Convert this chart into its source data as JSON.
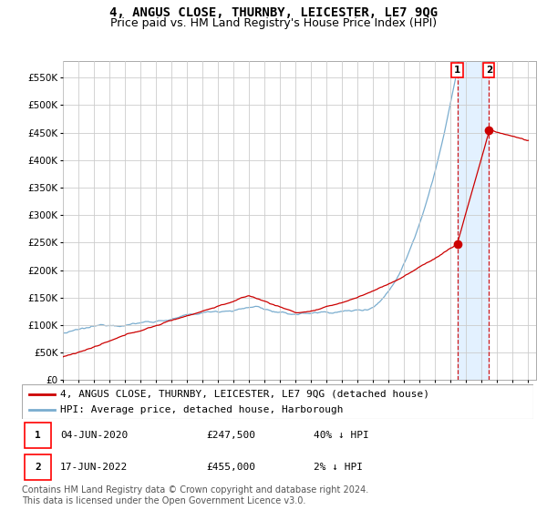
{
  "title": "4, ANGUS CLOSE, THURNBY, LEICESTER, LE7 9QG",
  "subtitle": "Price paid vs. HM Land Registry's House Price Index (HPI)",
  "ylim": [
    0,
    580000
  ],
  "yticks": [
    0,
    50000,
    100000,
    150000,
    200000,
    250000,
    300000,
    350000,
    400000,
    450000,
    500000,
    550000
  ],
  "xlim_start": 1995.0,
  "xlim_end": 2025.5,
  "hpi_color": "#7aadcf",
  "price_color": "#cc0000",
  "shade_color": "#ddeeff",
  "sale1_date": 2020.42,
  "sale1_price": 247500,
  "sale2_date": 2022.46,
  "sale2_price": 455000,
  "legend_label_price": "4, ANGUS CLOSE, THURNBY, LEICESTER, LE7 9QG (detached house)",
  "legend_label_hpi": "HPI: Average price, detached house, Harborough",
  "table_rows": [
    {
      "num": "1",
      "date": "04-JUN-2020",
      "price": "£247,500",
      "hpi": "40% ↓ HPI"
    },
    {
      "num": "2",
      "date": "17-JUN-2022",
      "price": "£455,000",
      "hpi": "2% ↓ HPI"
    }
  ],
  "footer": "Contains HM Land Registry data © Crown copyright and database right 2024.\nThis data is licensed under the Open Government Licence v3.0.",
  "title_fontsize": 10,
  "subtitle_fontsize": 9,
  "tick_fontsize": 7.5,
  "legend_fontsize": 8,
  "table_fontsize": 8,
  "footer_fontsize": 7
}
